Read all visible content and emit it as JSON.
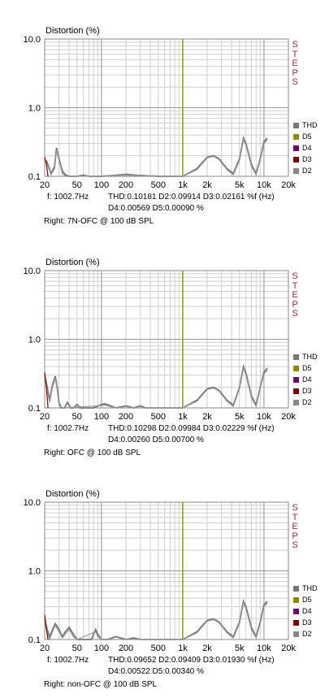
{
  "chart_data": [
    {
      "type": "line",
      "title": "",
      "ylabel": "Distortion (%)",
      "xlabel": "",
      "xscale": "log",
      "yscale": "log",
      "xlim": [
        20,
        20000
      ],
      "ylim": [
        0.1,
        10.0
      ],
      "y_ticks": [
        "10.0",
        "1.0",
        "0.1"
      ],
      "x_ticks": [
        "20",
        "50",
        "100",
        "200",
        "500",
        "1k",
        "2k",
        "5k",
        "10k",
        "20k"
      ],
      "side_label": [
        "S",
        "T",
        "E",
        "P",
        "S"
      ],
      "marker_frequency": 1000,
      "legend": [
        {
          "name": "THD",
          "color": "#777777"
        },
        {
          "name": "D5",
          "color": "#8a8a00"
        },
        {
          "name": "D4",
          "color": "#6a006a"
        },
        {
          "name": "D3",
          "color": "#7a0000"
        },
        {
          "name": "D2",
          "color": "#888888"
        }
      ],
      "readout": {
        "freq": "f: 1002.7Hz",
        "line1": "THD:0.10181  D2:0.09914  D3:0.02161  %f (Hz)",
        "line2": "D4:0.00569  D5:0.00090   %"
      },
      "caption": "Right: 7N-OFC @ 100 dB SPL",
      "series": [
        {
          "name": "THD",
          "color": "#777777",
          "points": [
            [
              21,
              0.17
            ],
            [
              24,
              0.11
            ],
            [
              26.5,
              0.14
            ],
            [
              28,
              0.26
            ],
            [
              30,
              0.18
            ],
            [
              33,
              0.12
            ],
            [
              36,
              0.105
            ],
            [
              40,
              0.1
            ],
            [
              50,
              0.1
            ],
            [
              60,
              0.104
            ],
            [
              70,
              0.1
            ],
            [
              100,
              0.1
            ],
            [
              150,
              0.104
            ],
            [
              200,
              0.107
            ],
            [
              300,
              0.103
            ],
            [
              500,
              0.1
            ],
            [
              1000,
              0.1
            ],
            [
              1500,
              0.13
            ],
            [
              2000,
              0.19
            ],
            [
              2400,
              0.2
            ],
            [
              2800,
              0.18
            ],
            [
              3500,
              0.13
            ],
            [
              4200,
              0.11
            ],
            [
              5000,
              0.18
            ],
            [
              5600,
              0.36
            ],
            [
              6000,
              0.3
            ],
            [
              7000,
              0.15
            ],
            [
              8000,
              0.11
            ],
            [
              9000,
              0.18
            ],
            [
              10000,
              0.32
            ],
            [
              11000,
              0.36
            ]
          ]
        },
        {
          "name": "D2",
          "color": "#999999",
          "points": [
            [
              21,
              0.16
            ],
            [
              24,
              0.105
            ],
            [
              26.5,
              0.13
            ],
            [
              28,
              0.24
            ],
            [
              30,
              0.17
            ],
            [
              33,
              0.11
            ],
            [
              36,
              0.1
            ],
            [
              60,
              0.1
            ],
            [
              200,
              0.104
            ],
            [
              1000,
              0.1
            ],
            [
              1500,
              0.125
            ],
            [
              2000,
              0.185
            ],
            [
              2400,
              0.195
            ],
            [
              2800,
              0.175
            ],
            [
              3500,
              0.125
            ],
            [
              4200,
              0.105
            ],
            [
              5000,
              0.17
            ],
            [
              5600,
              0.34
            ],
            [
              6000,
              0.28
            ],
            [
              7000,
              0.14
            ],
            [
              8000,
              0.105
            ],
            [
              9000,
              0.17
            ],
            [
              10000,
              0.3
            ],
            [
              11000,
              0.34
            ]
          ]
        },
        {
          "name": "D3",
          "color": "#7a0000",
          "points": [
            [
              20,
              0.19
            ],
            [
              21,
              0.15
            ],
            [
              22,
              0.1
            ]
          ]
        },
        {
          "name": "D4",
          "color": "#6a006a",
          "points": []
        },
        {
          "name": "D5",
          "color": "#8a8a00",
          "points": []
        }
      ]
    },
    {
      "type": "line",
      "title": "",
      "ylabel": "Distortion (%)",
      "xlabel": "",
      "xscale": "log",
      "yscale": "log",
      "xlim": [
        20,
        20000
      ],
      "ylim": [
        0.1,
        10.0
      ],
      "y_ticks": [
        "10.0",
        "1.0",
        "0.1"
      ],
      "x_ticks": [
        "20",
        "50",
        "100",
        "200",
        "500",
        "1k",
        "2k",
        "5k",
        "10k",
        "20k"
      ],
      "side_label": [
        "S",
        "T",
        "E",
        "P",
        "S"
      ],
      "marker_frequency": 1000,
      "legend": [
        {
          "name": "THD",
          "color": "#777777"
        },
        {
          "name": "D5",
          "color": "#8a8a00"
        },
        {
          "name": "D4",
          "color": "#6a006a"
        },
        {
          "name": "D3",
          "color": "#7a0000"
        },
        {
          "name": "D2",
          "color": "#888888"
        }
      ],
      "readout": {
        "freq": "f: 1002.7Hz",
        "line1": "THD:0.10298  D2:0.09984  D3:0.02229  %f (Hz)",
        "line2": "D4:0.00260  D5:0.00700   %"
      },
      "caption": "Right: OFC @ 100 dB SPL",
      "series": [
        {
          "name": "THD",
          "color": "#777777",
          "points": [
            [
              20,
              0.3
            ],
            [
              21.5,
              0.2
            ],
            [
              23,
              0.13
            ],
            [
              25,
              0.22
            ],
            [
              27,
              0.29
            ],
            [
              28.5,
              0.2
            ],
            [
              30,
              0.12
            ],
            [
              32,
              0.1
            ],
            [
              35,
              0.1
            ],
            [
              38,
              0.12
            ],
            [
              42,
              0.1
            ],
            [
              45,
              0.1
            ],
            [
              50,
              0.112
            ],
            [
              55,
              0.1
            ],
            [
              80,
              0.1
            ],
            [
              100,
              0.112
            ],
            [
              110,
              0.115
            ],
            [
              130,
              0.107
            ],
            [
              150,
              0.1
            ],
            [
              200,
              0.107
            ],
            [
              250,
              0.1
            ],
            [
              300,
              0.107
            ],
            [
              350,
              0.1
            ],
            [
              1000,
              0.1
            ],
            [
              1500,
              0.13
            ],
            [
              2000,
              0.19
            ],
            [
              2400,
              0.2
            ],
            [
              2800,
              0.18
            ],
            [
              3500,
              0.13
            ],
            [
              4200,
              0.11
            ],
            [
              5000,
              0.2
            ],
            [
              5600,
              0.4
            ],
            [
              6000,
              0.32
            ],
            [
              7000,
              0.15
            ],
            [
              8000,
              0.11
            ],
            [
              9000,
              0.2
            ],
            [
              10000,
              0.33
            ],
            [
              11000,
              0.38
            ]
          ]
        },
        {
          "name": "D2",
          "color": "#999999",
          "points": [
            [
              20,
              0.28
            ],
            [
              21.5,
              0.18
            ],
            [
              23,
              0.12
            ],
            [
              25,
              0.2
            ],
            [
              27,
              0.27
            ],
            [
              28.5,
              0.18
            ],
            [
              30,
              0.11
            ],
            [
              32,
              0.1
            ],
            [
              100,
              0.108
            ],
            [
              110,
              0.11
            ],
            [
              130,
              0.104
            ],
            [
              150,
              0.1
            ],
            [
              1000,
              0.1
            ],
            [
              1500,
              0.125
            ],
            [
              2000,
              0.185
            ],
            [
              2400,
              0.195
            ],
            [
              2800,
              0.175
            ],
            [
              3500,
              0.125
            ],
            [
              4200,
              0.105
            ],
            [
              5000,
              0.19
            ],
            [
              5600,
              0.38
            ],
            [
              6000,
              0.3
            ],
            [
              7000,
              0.14
            ],
            [
              8000,
              0.105
            ],
            [
              9000,
              0.19
            ],
            [
              10000,
              0.31
            ],
            [
              11000,
              0.36
            ]
          ]
        },
        {
          "name": "D3",
          "color": "#7a0000",
          "points": [
            [
              20,
              0.33
            ],
            [
              21,
              0.2
            ],
            [
              22,
              0.1
            ]
          ]
        },
        {
          "name": "D4",
          "color": "#6a006a",
          "points": []
        },
        {
          "name": "D5",
          "color": "#8a8a00",
          "points": []
        }
      ]
    },
    {
      "type": "line",
      "title": "",
      "ylabel": "Distortion (%)",
      "xlabel": "",
      "xscale": "log",
      "yscale": "log",
      "xlim": [
        20,
        20000
      ],
      "ylim": [
        0.1,
        10.0
      ],
      "y_ticks": [
        "10.0",
        "1.0",
        "0.1"
      ],
      "x_ticks": [
        "20",
        "50",
        "100",
        "200",
        "500",
        "1k",
        "2k",
        "5k",
        "10k",
        "20k"
      ],
      "side_label": [
        "S",
        "T",
        "E",
        "P",
        "S"
      ],
      "marker_frequency": 1000,
      "legend": [
        {
          "name": "THD",
          "color": "#777777"
        },
        {
          "name": "D5",
          "color": "#8a8a00"
        },
        {
          "name": "D4",
          "color": "#6a006a"
        },
        {
          "name": "D3",
          "color": "#7a0000"
        },
        {
          "name": "D2",
          "color": "#888888"
        }
      ],
      "readout": {
        "freq": "f: 1002.7Hz",
        "line1": "THD:0.09652  D2:0.09409  D3:0.01930  %f (Hz)",
        "line2": "D4:0.00522  D5:0.00340   %"
      },
      "caption": "Right: non-OFC @ 100 dB SPL",
      "series": [
        {
          "name": "THD",
          "color": "#777777",
          "points": [
            [
              20,
              0.2
            ],
            [
              21.5,
              0.14
            ],
            [
              23,
              0.11
            ],
            [
              25,
              0.14
            ],
            [
              27,
              0.17
            ],
            [
              30,
              0.14
            ],
            [
              33,
              0.11
            ],
            [
              36,
              0.13
            ],
            [
              40,
              0.15
            ],
            [
              45,
              0.12
            ],
            [
              50,
              0.1
            ],
            [
              60,
              0.1
            ],
            [
              75,
              0.1
            ],
            [
              85,
              0.14
            ],
            [
              90,
              0.12
            ],
            [
              100,
              0.1
            ],
            [
              120,
              0.1
            ],
            [
              150,
              0.11
            ],
            [
              200,
              0.1
            ],
            [
              250,
              0.105
            ],
            [
              300,
              0.1
            ],
            [
              1000,
              0.1
            ],
            [
              1500,
              0.13
            ],
            [
              2000,
              0.19
            ],
            [
              2400,
              0.2
            ],
            [
              2800,
              0.18
            ],
            [
              3500,
              0.13
            ],
            [
              4200,
              0.11
            ],
            [
              5000,
              0.18
            ],
            [
              5600,
              0.36
            ],
            [
              6000,
              0.3
            ],
            [
              7000,
              0.15
            ],
            [
              8000,
              0.11
            ],
            [
              9000,
              0.18
            ],
            [
              10000,
              0.32
            ],
            [
              11000,
              0.36
            ]
          ]
        },
        {
          "name": "D2",
          "color": "#999999",
          "points": [
            [
              20,
              0.18
            ],
            [
              21.5,
              0.13
            ],
            [
              23,
              0.1
            ],
            [
              25,
              0.13
            ],
            [
              27,
              0.16
            ],
            [
              30,
              0.13
            ],
            [
              33,
              0.105
            ],
            [
              36,
              0.12
            ],
            [
              40,
              0.14
            ],
            [
              45,
              0.11
            ],
            [
              50,
              0.1
            ],
            [
              85,
              0.13
            ],
            [
              90,
              0.11
            ],
            [
              100,
              0.1
            ],
            [
              1000,
              0.1
            ],
            [
              1500,
              0.125
            ],
            [
              2000,
              0.185
            ],
            [
              2400,
              0.195
            ],
            [
              2800,
              0.175
            ],
            [
              3500,
              0.125
            ],
            [
              4200,
              0.105
            ],
            [
              5000,
              0.17
            ],
            [
              5600,
              0.34
            ],
            [
              6000,
              0.28
            ],
            [
              7000,
              0.14
            ],
            [
              8000,
              0.105
            ],
            [
              9000,
              0.17
            ],
            [
              10000,
              0.3
            ],
            [
              11000,
              0.34
            ]
          ]
        },
        {
          "name": "D3",
          "color": "#7a0000",
          "points": [
            [
              20,
              0.23
            ],
            [
              21,
              0.14
            ],
            [
              22,
              0.1
            ]
          ]
        },
        {
          "name": "D4",
          "color": "#6a006a",
          "points": []
        },
        {
          "name": "D5",
          "color": "#8a8a00",
          "points": []
        }
      ]
    }
  ]
}
